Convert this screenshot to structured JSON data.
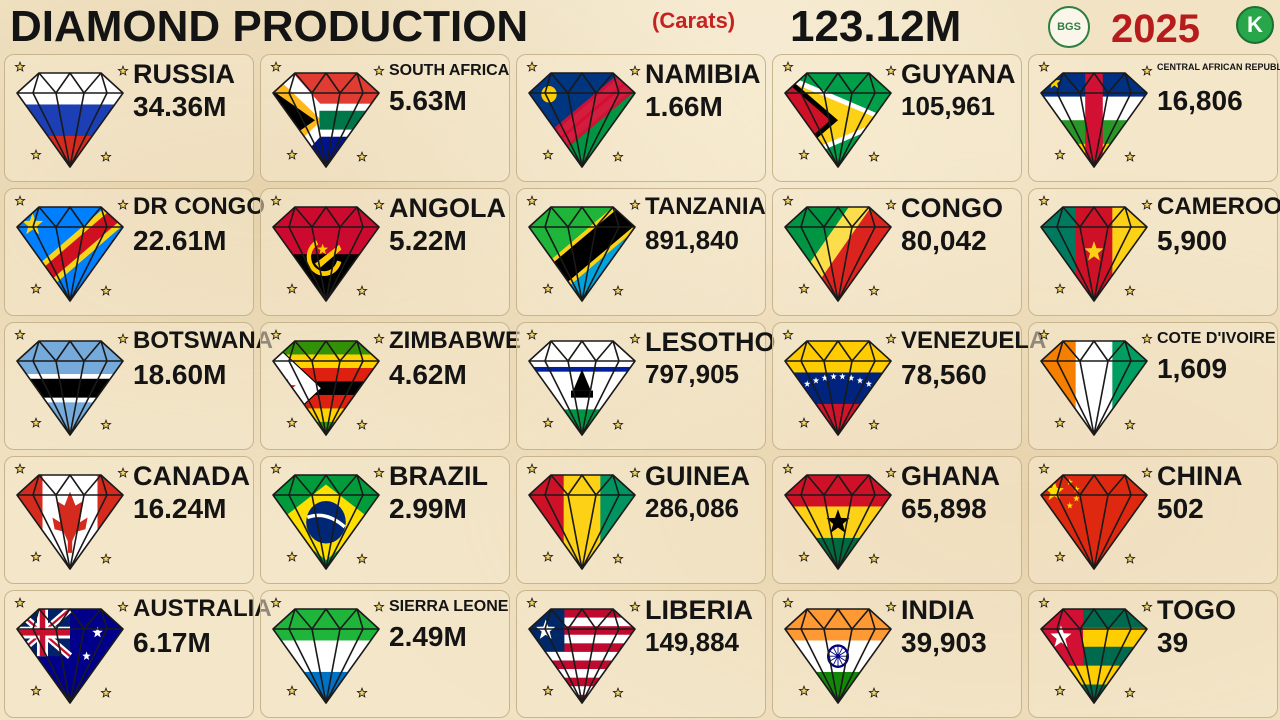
{
  "header": {
    "title": "DIAMOND PRODUCTION",
    "unit": "(Carats)",
    "total": "123.12M",
    "logo_text": "BGS",
    "year": "2025",
    "brand_logo_text": "K"
  },
  "countries": [
    {
      "name": "RUSSIA",
      "value": "34.36M",
      "flag": "russia"
    },
    {
      "name": "SOUTH AFRICA",
      "value": "5.63M",
      "flag": "south-africa"
    },
    {
      "name": "NAMIBIA",
      "value": "1.66M",
      "flag": "namibia"
    },
    {
      "name": "GUYANA",
      "value": "105,961",
      "flag": "guyana"
    },
    {
      "name": "CENTRAL AFRICAN REPUBLIC",
      "value": "16,806",
      "flag": "central-african-republic"
    },
    {
      "name": "DR CONGO",
      "value": "22.61M",
      "flag": "dr-congo"
    },
    {
      "name": "ANGOLA",
      "value": "5.22M",
      "flag": "angola"
    },
    {
      "name": "TANZANIA",
      "value": "891,840",
      "flag": "tanzania"
    },
    {
      "name": "CONGO",
      "value": "80,042",
      "flag": "congo"
    },
    {
      "name": "CAMEROON",
      "value": "5,900",
      "flag": "cameroon"
    },
    {
      "name": "BOTSWANA",
      "value": "18.60M",
      "flag": "botswana"
    },
    {
      "name": "ZIMBABWE",
      "value": "4.62M",
      "flag": "zimbabwe"
    },
    {
      "name": "LESOTHO",
      "value": "797,905",
      "flag": "lesotho"
    },
    {
      "name": "VENEZUELA",
      "value": "78,560",
      "flag": "venezuela"
    },
    {
      "name": "COTE D'IVOIRE",
      "value": "1,609",
      "flag": "cote-divoire"
    },
    {
      "name": "CANADA",
      "value": "16.24M",
      "flag": "canada"
    },
    {
      "name": "BRAZIL",
      "value": "2.99M",
      "flag": "brazil"
    },
    {
      "name": "GUINEA",
      "value": "286,086",
      "flag": "guinea"
    },
    {
      "name": "GHANA",
      "value": "65,898",
      "flag": "ghana"
    },
    {
      "name": "CHINA",
      "value": "502",
      "flag": "china"
    },
    {
      "name": "AUSTRALIA",
      "value": "6.17M",
      "flag": "australia"
    },
    {
      "name": "SIERRA LEONE",
      "value": "2.49M",
      "flag": "sierra-leone"
    },
    {
      "name": "LIBERIA",
      "value": "149,884",
      "flag": "liberia"
    },
    {
      "name": "INDIA",
      "value": "39,903",
      "flag": "india"
    },
    {
      "name": "TOGO",
      "value": "39",
      "flag": "togo"
    }
  ],
  "colors": {
    "accent_red": "#c62222",
    "year_red": "#b71c1c",
    "brand_green": "#27a64a",
    "background": "#f1e3c4",
    "card_border": "#c9b58d"
  }
}
